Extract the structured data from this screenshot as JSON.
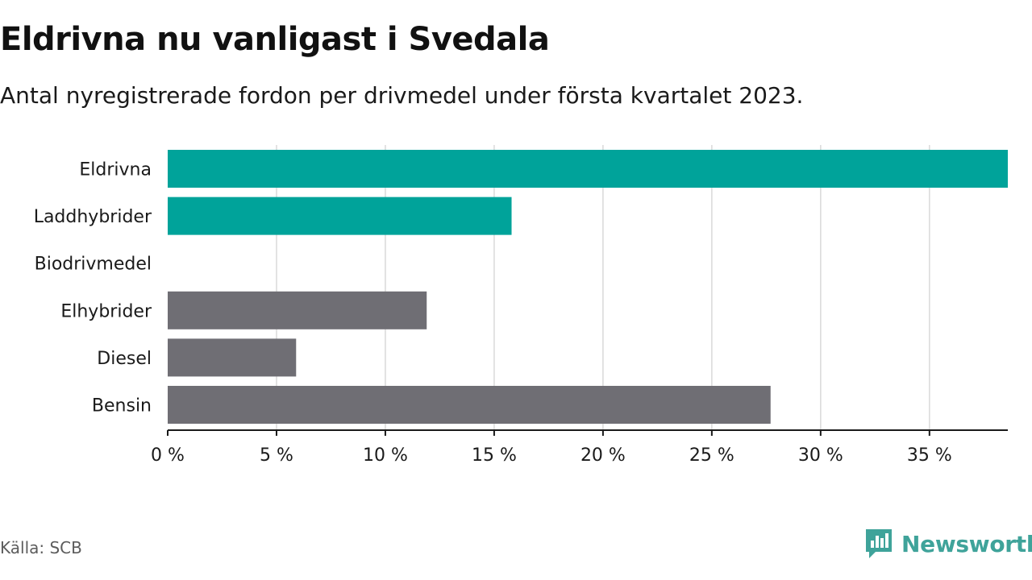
{
  "title": "Eldrivna nu vanligast i Svedala",
  "subtitle": "Antal nyregistrerade fordon per drivmedel under första kvartalet 2023.",
  "source": "Källa: SCB",
  "brand": "Newsworthy",
  "colors": {
    "highlight": "#00a39a",
    "default": "#6f6e74",
    "grid": "#d9d9d9",
    "axis": "#1a1a1a",
    "brand": "#3fa39a"
  },
  "chart_data": {
    "type": "bar",
    "orientation": "horizontal",
    "categories": [
      "Eldrivna",
      "Laddhybrider",
      "Biodrivmedel",
      "Elhybrider",
      "Diesel",
      "Bensin"
    ],
    "values": [
      38.6,
      15.8,
      0,
      11.9,
      5.9,
      27.7
    ],
    "highlighted": [
      true,
      true,
      false,
      false,
      false,
      false
    ],
    "xlim": [
      0,
      38.6
    ],
    "xticks": [
      0,
      5,
      10,
      15,
      20,
      25,
      30,
      35
    ],
    "xtick_labels": [
      "0 %",
      "5 %",
      "10 %",
      "15 %",
      "20 %",
      "25 %",
      "30 %",
      "35 %"
    ],
    "grid": true,
    "legend": "none"
  }
}
